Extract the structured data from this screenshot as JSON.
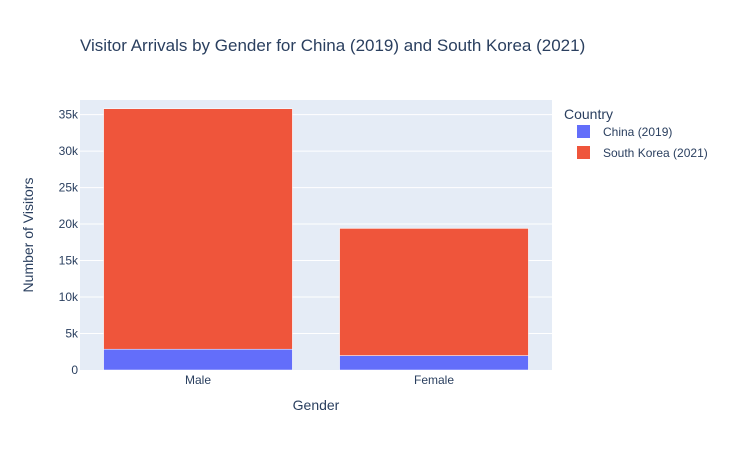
{
  "chart_data": {
    "type": "bar",
    "barmode": "stack",
    "title": "Visitor Arrivals by Gender for China (2019) and South Korea (2021)",
    "xlabel": "Gender",
    "ylabel": "Number of Visitors",
    "categories": [
      "Male",
      "Female"
    ],
    "series": [
      {
        "name": "China (2019)",
        "color": "#636efa",
        "values": [
          2850,
          1980
        ]
      },
      {
        "name": "South Korea (2021)",
        "color": "#ef553b",
        "values": [
          32950,
          17420
        ]
      }
    ],
    "ylim": [
      0,
      37000
    ],
    "yticks": [
      0,
      5000,
      10000,
      15000,
      20000,
      25000,
      30000,
      35000
    ],
    "ytick_labels": [
      "0",
      "5k",
      "10k",
      "15k",
      "20k",
      "25k",
      "30k",
      "35k"
    ],
    "grid": true,
    "plot_background": "#e5ecf6",
    "legend": {
      "title": "Country",
      "placement": "right-top"
    }
  }
}
